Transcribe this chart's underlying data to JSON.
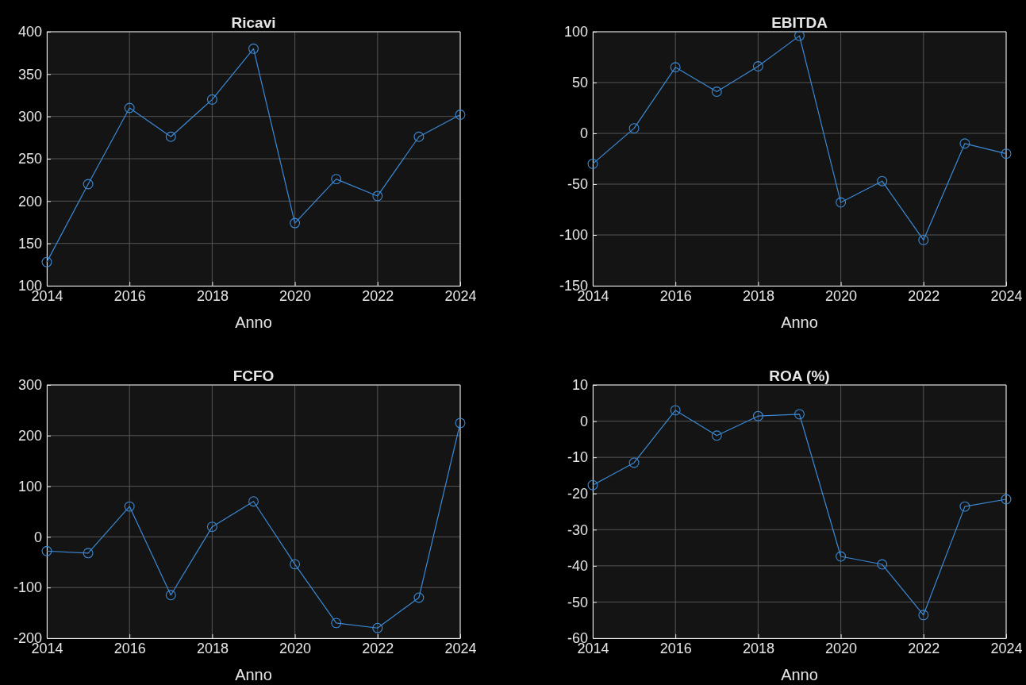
{
  "chart_data": [
    {
      "type": "line",
      "title": "Ricavi",
      "xlabel": "Anno",
      "x": [
        2014,
        2015,
        2016,
        2017,
        2018,
        2019,
        2020,
        2021,
        2022,
        2023,
        2024
      ],
      "series": [
        {
          "color": "#3b8ad6",
          "values": [
            128,
            220,
            310,
            276,
            320,
            380,
            174,
            226,
            206,
            276,
            302
          ]
        }
      ],
      "xlim": [
        2014,
        2024
      ],
      "xticks": [
        2014,
        2016,
        2018,
        2020,
        2022,
        2024
      ],
      "ylim": [
        100,
        400
      ],
      "yticks": [
        100,
        150,
        200,
        250,
        300,
        350,
        400
      ],
      "grid": true,
      "marker": "circle",
      "line_style": "solid"
    },
    {
      "type": "line",
      "title": "EBITDA",
      "xlabel": "Anno",
      "x": [
        2014,
        2015,
        2016,
        2017,
        2018,
        2019,
        2020,
        2021,
        2022,
        2023,
        2024
      ],
      "series": [
        {
          "color": "#3b8ad6",
          "values": [
            -30,
            5,
            65,
            41,
            66,
            96,
            -68,
            -47,
            -105,
            -10,
            -20
          ]
        }
      ],
      "xlim": [
        2014,
        2024
      ],
      "xticks": [
        2014,
        2016,
        2018,
        2020,
        2022,
        2024
      ],
      "ylim": [
        -150,
        100
      ],
      "yticks": [
        -150,
        -100,
        -50,
        0,
        50,
        100
      ],
      "grid": true,
      "marker": "circle",
      "line_style": "solid"
    },
    {
      "type": "line",
      "title": "FCFO",
      "xlabel": "Anno",
      "x": [
        2014,
        2015,
        2016,
        2017,
        2018,
        2019,
        2020,
        2021,
        2022,
        2023,
        2024
      ],
      "series": [
        {
          "color": "#3b8ad6",
          "values": [
            -28,
            -32,
            60,
            -115,
            20,
            70,
            -54,
            -170,
            -180,
            -120,
            225
          ]
        }
      ],
      "xlim": [
        2014,
        2024
      ],
      "xticks": [
        2014,
        2016,
        2018,
        2020,
        2022,
        2024
      ],
      "ylim": [
        -200,
        300
      ],
      "yticks": [
        -200,
        -100,
        0,
        100,
        200,
        300
      ],
      "grid": true,
      "marker": "circle",
      "line_style": "solid"
    },
    {
      "type": "line",
      "title": "ROA (%)",
      "xlabel": "Anno",
      "x": [
        2014,
        2015,
        2016,
        2017,
        2018,
        2019,
        2020,
        2021,
        2022,
        2023,
        2024
      ],
      "series": [
        {
          "color": "#3b8ad6",
          "values": [
            -17.7,
            -11.5,
            3,
            -4,
            1.4,
            1.9,
            -37.4,
            -39.6,
            -53.6,
            -23.6,
            -21.6
          ]
        }
      ],
      "xlim": [
        2014,
        2024
      ],
      "xticks": [
        2014,
        2016,
        2018,
        2020,
        2022,
        2024
      ],
      "ylim": [
        -60,
        10
      ],
      "yticks": [
        -60,
        -50,
        -40,
        -30,
        -20,
        -10,
        0,
        10
      ],
      "grid": true,
      "marker": "circle",
      "line_style": "solid"
    }
  ]
}
